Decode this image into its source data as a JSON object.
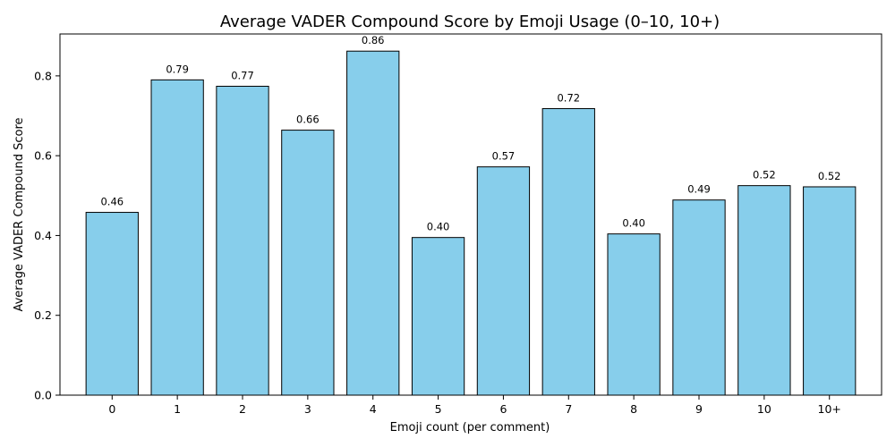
{
  "chart_data": {
    "type": "bar",
    "title": "Average VADER Compound Score by Emoji Usage (0–10, 10+)",
    "xlabel": "Emoji count (per comment)",
    "ylabel": "Average VADER Compound Score",
    "categories": [
      "0",
      "1",
      "2",
      "3",
      "4",
      "5",
      "6",
      "7",
      "8",
      "9",
      "10",
      "10+"
    ],
    "values": [
      0.458,
      0.79,
      0.774,
      0.664,
      0.862,
      0.395,
      0.572,
      0.718,
      0.404,
      0.489,
      0.525,
      0.522
    ],
    "value_labels": [
      "0.46",
      "0.79",
      "0.77",
      "0.66",
      "0.86",
      "0.40",
      "0.57",
      "0.72",
      "0.40",
      "0.49",
      "0.52",
      "0.52"
    ],
    "ylim": [
      0,
      0.905
    ],
    "yticks": [
      0.0,
      0.2,
      0.4,
      0.6,
      0.8
    ],
    "ytick_labels": [
      "0.0",
      "0.2",
      "0.4",
      "0.6",
      "0.8"
    ],
    "grid": false,
    "bar_color": "#87CEEB",
    "edge_color": "#000000"
  }
}
